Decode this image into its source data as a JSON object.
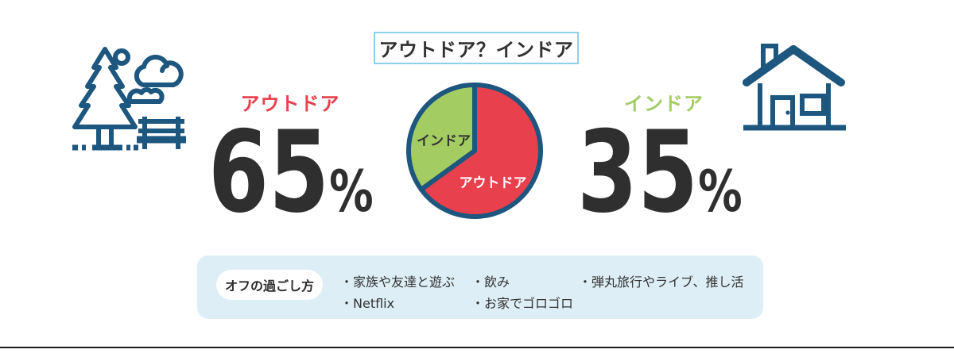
{
  "title": "アウトドア？インドア",
  "outdoor": {
    "label": "アウトドア",
    "value": "65",
    "unit": "%"
  },
  "indoor": {
    "label": "インドア",
    "value": "35",
    "unit": "%"
  },
  "off_time": {
    "heading": "オフの過ごし方",
    "columns": [
      [
        "・家族や友達と遊ぶ",
        "・Netflix"
      ],
      [
        "・飲み",
        "・お家でゴロゴロ"
      ],
      [
        "・弾丸旅行やライブ、推し活"
      ]
    ]
  },
  "icons": {
    "left": "park-outdoor-icon",
    "right": "house-indoor-icon"
  },
  "colors": {
    "navy": "#1d567e",
    "red": "#e8404d",
    "green": "#a3cd63",
    "title_border": "#8cd0ee",
    "panel_bg": "#ddeef6",
    "text_dark": "#323232",
    "divider": "#1c1c1c"
  },
  "chart_data": {
    "type": "pie",
    "title": "アウトドア？インドア",
    "slices": [
      {
        "label": "アウトドア",
        "value": 65,
        "color": "#e8404d",
        "text_color": "#ffffff"
      },
      {
        "label": "インドア",
        "value": 35,
        "color": "#a3cd63",
        "text_color": "#323232"
      }
    ],
    "start_angle_deg": -90,
    "direction": "clockwise",
    "stroke_color": "#1d567e",
    "stroke_width": 6,
    "labels_on_slices": true,
    "legend": "none"
  }
}
